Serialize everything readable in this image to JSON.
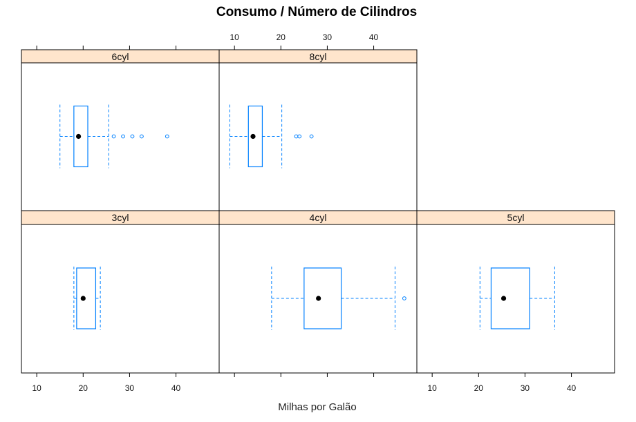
{
  "colors": {
    "strip": "#ffe5cc",
    "box": "#0080ff",
    "median": "#000000"
  },
  "chart_data": {
    "type": "boxplot",
    "title": "Consumo / Número de Cilindros",
    "xlabel": "Milhas por Galão",
    "xlim": [
      6.7,
      49.3
    ],
    "xticks": [
      10,
      20,
      30,
      40
    ],
    "layout": "3 columns x 2 rows",
    "panels": [
      {
        "label": "6cyl",
        "row": 0,
        "col": 0,
        "whisker_low": 15,
        "q1": 18,
        "median": 19,
        "q3": 21,
        "whisker_high": 25.5,
        "outliers": [
          26.6,
          28.6,
          30.6,
          32.6,
          38.1
        ]
      },
      {
        "label": "8cyl",
        "row": 0,
        "col": 1,
        "whisker_low": 9,
        "q1": 13,
        "median": 14,
        "q3": 16,
        "whisker_high": 20.2,
        "outliers": [
          23.3,
          24,
          26.6
        ]
      },
      {
        "label": "3cyl",
        "row": 1,
        "col": 0,
        "whisker_low": 18,
        "q1": 18.6,
        "median": 20,
        "q3": 22.7,
        "whisker_high": 23.7,
        "outliers": []
      },
      {
        "label": "4cyl",
        "row": 1,
        "col": 1,
        "whisker_low": 18,
        "q1": 25,
        "median": 28.1,
        "q3": 33,
        "whisker_high": 44.6,
        "outliers": [
          46.6
        ]
      },
      {
        "label": "5cyl",
        "row": 1,
        "col": 2,
        "whisker_low": 20.3,
        "q1": 22.7,
        "median": 25.4,
        "q3": 31,
        "whisker_high": 36.4,
        "outliers": []
      }
    ]
  }
}
